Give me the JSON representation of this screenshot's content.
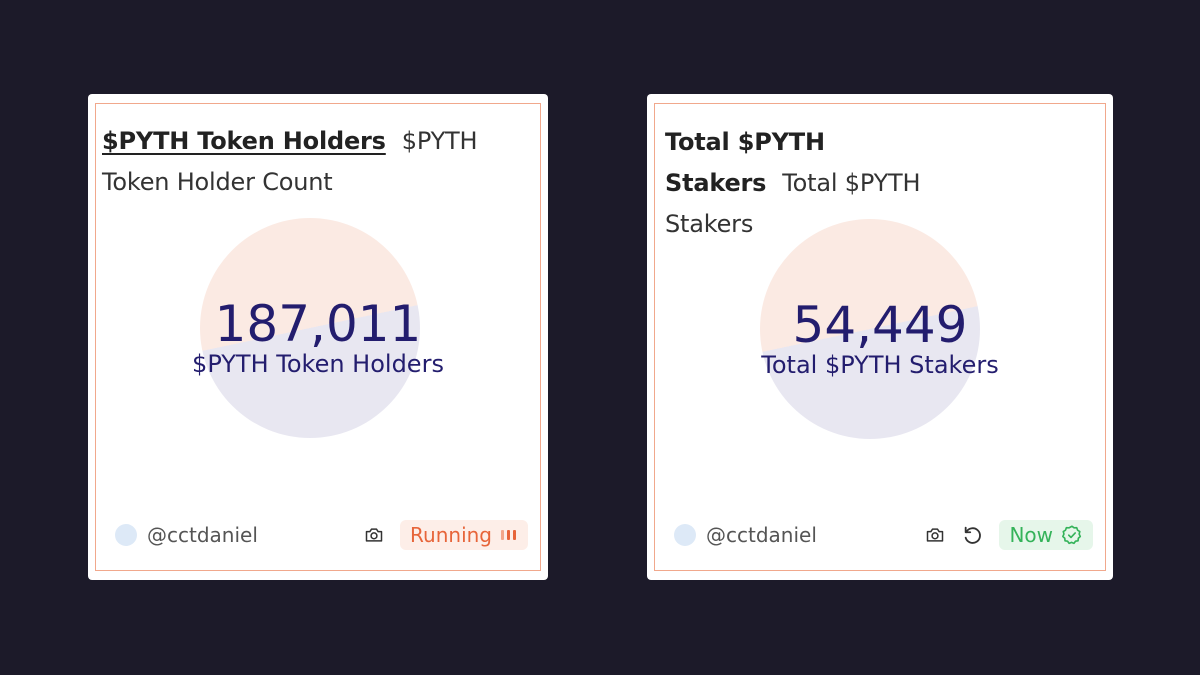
{
  "cards": [
    {
      "title": "$PYTH Token Holders",
      "description": "$PYTH Token Holder Count",
      "value": "187,011",
      "label": "$PYTH Token Holders",
      "author": "@cctdaniel",
      "status": "Running",
      "actions": [
        "camera-icon"
      ]
    },
    {
      "title": "Total $PYTH Stakers",
      "description": "Total $PYTH Stakers",
      "value": "54,449",
      "label": "Total $PYTH Stakers",
      "author": "@cctdaniel",
      "status": "Now",
      "actions": [
        "camera-icon",
        "refresh-icon"
      ]
    }
  ],
  "colors": {
    "background": "#1c1a29",
    "card_border": "#f1a88c",
    "value_text": "#231d6e",
    "running": "#e7653a",
    "now": "#35b35a"
  }
}
